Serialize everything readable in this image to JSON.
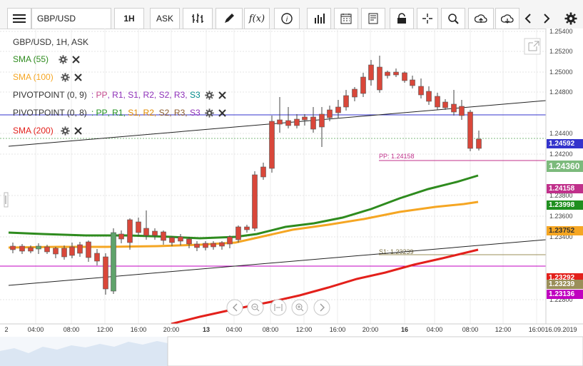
{
  "toolbar": {
    "symbol": "GBP/USD",
    "timeframe": "1H",
    "price_side": "ASK"
  },
  "legend": {
    "title": "GBP/USD, 1H, ASK",
    "items": [
      {
        "label": "SMA (55)",
        "color": "#2e8b1e"
      },
      {
        "label": "SMA (100)",
        "color": "#f5a623"
      },
      {
        "label": "PIVOTPOINT (0, 9)",
        "levels_prefix": ": ",
        "levels": [
          "PP",
          "R1",
          "S1",
          "R2",
          "S2",
          "R3",
          "S3"
        ]
      },
      {
        "label": "PIVOTPOINT (0, 8)",
        "levels_prefix": ": ",
        "levels": [
          "PP",
          "R1",
          "S1",
          "R2",
          "S2",
          "R3",
          "S3"
        ]
      },
      {
        "label": "SMA (200)",
        "color": "#e3201b"
      }
    ]
  },
  "price_axis": {
    "ticks": [
      "1.25400",
      "1.25200",
      "1.25000",
      "1.24800",
      "1.24400",
      "1.24200",
      "1.23800",
      "1.23600",
      "1.23400",
      "1.22800"
    ],
    "tags": [
      {
        "value": "1.24592",
        "color": "#3333cc",
        "text_color": "#ffffff"
      },
      {
        "value": "1.24360",
        "color": "#7cba7c",
        "text_color": "#ffffff"
      },
      {
        "value": "1.24158",
        "color": "#c0308b",
        "text_color": "#ffffff"
      },
      {
        "value": "1.23998",
        "color": "#1f8f1f",
        "text_color": "#ffffff"
      },
      {
        "value": "1.23752",
        "color": "#f5a623",
        "text_color": "#333333"
      },
      {
        "value": "1.23292",
        "color": "#e3201b",
        "text_color": "#ffffff"
      },
      {
        "value": "1.23239",
        "color": "#9b8f5a",
        "text_color": "#ffffff"
      },
      {
        "value": "1.23136",
        "color": "#c000c0",
        "text_color": "#ffffff"
      }
    ]
  },
  "time_axis": {
    "labels": [
      "2",
      "04:00",
      "08:00",
      "12:00",
      "16:00",
      "20:00",
      "13",
      "04:00",
      "08:00",
      "12:00",
      "16:00",
      "20:00",
      "16",
      "04:00",
      "08:00",
      "12:00",
      "16:00",
      "16.09.2019"
    ]
  },
  "annotations": {
    "pp_label": "PP: 1.24158",
    "s1_label": "S1: 1.23239"
  },
  "colors": {
    "bull": "#5fa36b",
    "bear": "#d9473a",
    "sma55": "#2e8b1e",
    "sma100": "#f5a623",
    "sma200": "#e3201b",
    "pivot_pp": "#c0308b",
    "pivot_s1": "#9b8f5a",
    "blue_line": "#3333cc",
    "magenta_line": "#c000c0",
    "level_pink": "#c44a8e",
    "level_purple": "#8e2fb8",
    "level_green": "#1f8f1f",
    "level_orange": "#e08a00",
    "level_teal": "#008b8b",
    "level_brown": "#8b5a2b"
  },
  "icons": [
    "menu-icon",
    "bars-icon",
    "pencil-icon",
    "fx-icon",
    "info-icon",
    "bar-chart-icon",
    "calendar-icon",
    "news-icon",
    "lock-icon",
    "crosshair-icon",
    "zoom-icon",
    "upload-icon",
    "download-icon",
    "chevron-left-icon",
    "chevron-right-icon",
    "gear-icon",
    "settings-icon",
    "close-icon",
    "popout-icon"
  ]
}
